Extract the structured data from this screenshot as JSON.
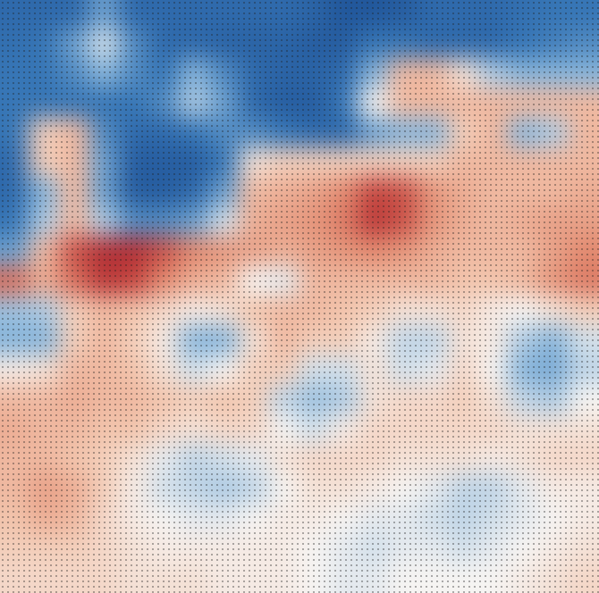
{
  "chart_data": {
    "type": "heatmap",
    "tick_labels": false,
    "contour_levels": [
      -0.4
    ],
    "cells": [
      [
        -0.7,
        -0.7,
        -0.7,
        -0.4,
        -0.7,
        -0.7,
        -0.7,
        -0.7,
        -0.7,
        -0.7,
        -0.75,
        -0.85,
        -0.85,
        -0.8,
        -0.7,
        -0.7,
        -0.7,
        -0.65,
        -0.6,
        -0.6
      ],
      [
        -0.65,
        -0.6,
        -0.4,
        -0.1,
        -0.5,
        -0.7,
        -0.7,
        -0.75,
        -0.75,
        -0.75,
        -0.8,
        -0.8,
        -0.6,
        -0.6,
        -0.7,
        -0.7,
        -0.7,
        -0.6,
        -0.55,
        -0.5
      ],
      [
        -0.6,
        -0.6,
        -0.5,
        -0.3,
        -0.5,
        -0.6,
        -0.3,
        -0.5,
        -0.7,
        -0.75,
        -0.75,
        -0.7,
        -0.3,
        0.3,
        0.3,
        0.1,
        -0.2,
        -0.3,
        -0.3,
        -0.3
      ],
      [
        -0.6,
        -0.6,
        -0.6,
        -0.6,
        -0.6,
        -0.5,
        -0.2,
        -0.4,
        -0.7,
        -0.8,
        -0.8,
        -0.6,
        0.0,
        0.3,
        0.3,
        0.3,
        0.3,
        0.3,
        0.3,
        0.3
      ],
      [
        -0.6,
        0.2,
        0.3,
        -0.5,
        -0.7,
        -0.7,
        -0.6,
        -0.5,
        -0.5,
        -0.6,
        -0.7,
        -0.7,
        -0.4,
        -0.3,
        -0.3,
        0.2,
        0.3,
        -0.3,
        -0.2,
        0.3
      ],
      [
        -0.7,
        0.2,
        0.3,
        -0.4,
        -0.8,
        -0.8,
        -0.8,
        -0.6,
        0.1,
        0.2,
        0.2,
        0.2,
        0.2,
        0.2,
        0.2,
        0.3,
        0.3,
        0.3,
        0.3,
        0.3
      ],
      [
        -0.7,
        -0.3,
        0.3,
        -0.4,
        -0.8,
        -0.8,
        -0.7,
        -0.4,
        0.3,
        0.35,
        0.4,
        0.5,
        0.75,
        0.7,
        0.45,
        0.35,
        0.3,
        0.3,
        0.3,
        0.35
      ],
      [
        -0.6,
        -0.2,
        0.3,
        -0.2,
        -0.5,
        -0.5,
        -0.4,
        -0.1,
        0.35,
        0.4,
        0.45,
        0.55,
        0.8,
        0.7,
        0.45,
        0.35,
        0.3,
        0.35,
        0.4,
        0.4
      ],
      [
        -0.4,
        0.3,
        0.7,
        0.85,
        0.85,
        0.7,
        0.5,
        0.45,
        0.4,
        0.35,
        0.4,
        0.45,
        0.5,
        0.45,
        0.35,
        0.3,
        0.3,
        0.3,
        0.4,
        0.5
      ],
      [
        0.6,
        0.35,
        0.6,
        0.8,
        0.75,
        0.5,
        0.35,
        0.3,
        0.0,
        -0.05,
        0.3,
        0.3,
        0.3,
        0.3,
        0.3,
        0.25,
        0.25,
        0.3,
        0.45,
        0.55
      ],
      [
        -0.25,
        -0.2,
        0.2,
        0.3,
        0.25,
        0.15,
        0.05,
        0.1,
        0.25,
        0.3,
        0.3,
        0.25,
        0.2,
        0.1,
        0.1,
        0.15,
        0.05,
        0.0,
        0.1,
        0.2
      ],
      [
        -0.3,
        -0.3,
        0.2,
        0.3,
        0.2,
        0.05,
        -0.3,
        -0.3,
        0.1,
        0.3,
        0.2,
        0.2,
        0.05,
        -0.15,
        -0.15,
        0.1,
        0.05,
        -0.2,
        -0.3,
        -0.1
      ],
      [
        0.05,
        0.1,
        0.3,
        0.3,
        0.25,
        0.1,
        -0.1,
        0.0,
        0.2,
        0.2,
        -0.1,
        -0.1,
        0.1,
        -0.1,
        -0.05,
        0.15,
        0.0,
        -0.3,
        -0.35,
        -0.15
      ],
      [
        0.3,
        0.3,
        0.35,
        0.3,
        0.3,
        0.25,
        0.2,
        0.25,
        0.2,
        -0.15,
        -0.25,
        -0.2,
        0.1,
        0.15,
        0.15,
        0.2,
        0.1,
        -0.15,
        -0.2,
        0.0
      ],
      [
        0.35,
        0.3,
        0.3,
        0.25,
        0.25,
        0.15,
        0.1,
        0.15,
        0.15,
        0.0,
        -0.1,
        0.05,
        0.15,
        0.15,
        0.15,
        0.15,
        0.15,
        0.1,
        0.1,
        0.1
      ],
      [
        0.3,
        0.3,
        0.25,
        0.2,
        0.1,
        -0.05,
        -0.15,
        -0.1,
        -0.05,
        0.1,
        0.15,
        0.15,
        0.15,
        0.1,
        0.1,
        0.1,
        0.05,
        0.1,
        0.15,
        0.15
      ],
      [
        0.3,
        0.4,
        0.35,
        0.2,
        0.05,
        -0.1,
        -0.15,
        -0.2,
        -0.15,
        0.0,
        0.1,
        0.1,
        0.05,
        0.0,
        -0.05,
        -0.15,
        -0.15,
        -0.05,
        0.05,
        0.05
      ],
      [
        0.25,
        0.35,
        0.3,
        0.15,
        0.05,
        0.0,
        -0.05,
        -0.05,
        0.0,
        0.05,
        0.05,
        0.0,
        -0.05,
        -0.05,
        -0.1,
        -0.15,
        -0.1,
        -0.05,
        0.0,
        0.05
      ],
      [
        0.2,
        0.2,
        0.2,
        0.15,
        0.1,
        0.05,
        0.05,
        0.05,
        0.05,
        0.05,
        0.0,
        -0.05,
        -0.1,
        -0.05,
        -0.05,
        -0.1,
        -0.05,
        0.0,
        0.05,
        0.1
      ],
      [
        0.15,
        0.15,
        0.15,
        0.15,
        0.1,
        0.1,
        0.1,
        0.05,
        0.05,
        0.05,
        0.0,
        -0.05,
        -0.05,
        0.0,
        0.0,
        0.0,
        0.0,
        0.05,
        0.1,
        0.15
      ]
    ]
  }
}
